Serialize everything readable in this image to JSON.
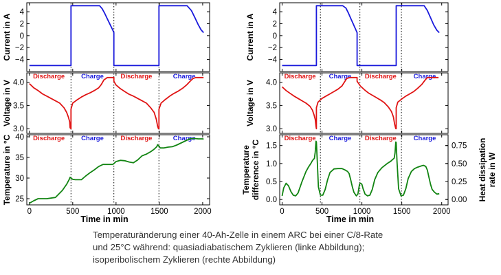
{
  "caption": {
    "line1": "Temperaturänderung einer 40-Ah-Zelle in einem ARC bei einer C/8-Rate",
    "line2": "und 25°C während: quasiadiabatischem Zyklieren (linke Abbildung);",
    "line3": "isoperibolischem Zyklieren (rechte Abbildung)"
  },
  "colors": {
    "current": "#1a1adc",
    "voltage": "#e01414",
    "temperature": "#118411",
    "discharge_label": "#e01414",
    "charge_label": "#1a1adc"
  },
  "phase_labels": {
    "discharge": "Discharge",
    "charge": "Charge"
  },
  "chart_data": [
    {
      "type": "line",
      "panel": "left-top",
      "ylabel": "Current in A",
      "xlabel": "",
      "xlim": [
        -30,
        2080
      ],
      "ylim": [
        -6,
        5.5
      ],
      "yticks": [
        -4,
        -2,
        0,
        2,
        4
      ],
      "xticks": [],
      "phase_boundaries": [
        480,
        975,
        1495
      ],
      "series": [
        {
          "x": [
            0,
            470,
            480,
            480,
            700,
            810,
            840,
            870,
            900,
            930,
            960,
            975,
            975,
            1200,
            1480,
            1495,
            1495,
            1740,
            1820,
            1870,
            1910,
            1950,
            1980,
            2010
          ],
          "y": [
            -5,
            -5,
            -5,
            5,
            5,
            5,
            4.5,
            3.7,
            2.8,
            1.9,
            1.0,
            0.5,
            -5,
            -5,
            -5,
            -5,
            5,
            5,
            5,
            4.2,
            3.0,
            1.8,
            1.0,
            0.5
          ]
        }
      ]
    },
    {
      "type": "line",
      "panel": "left-middle",
      "ylabel": "Voltage in V",
      "xlabel": "",
      "xlim": [
        -30,
        2080
      ],
      "ylim": [
        2.9,
        4.2
      ],
      "yticks": [
        3.0,
        3.5,
        4.0
      ],
      "xticks": [],
      "phase_boundaries": [
        480,
        975,
        1495
      ],
      "phase_label_row": "top",
      "series": [
        {
          "x": [
            0,
            50,
            100,
            150,
            200,
            250,
            300,
            350,
            400,
            430,
            450,
            465,
            470,
            480,
            480,
            500,
            550,
            600,
            650,
            700,
            750,
            800,
            830,
            860,
            900,
            960,
            975,
            975,
            1000,
            1050,
            1100,
            1150,
            1200,
            1250,
            1300,
            1350,
            1400,
            1440,
            1465,
            1480,
            1490,
            1495,
            1495,
            1520,
            1570,
            1620,
            1670,
            1720,
            1770,
            1820,
            1860,
            1890,
            1920,
            1960,
            2010
          ],
          "y": [
            3.97,
            3.88,
            3.82,
            3.75,
            3.7,
            3.65,
            3.6,
            3.55,
            3.45,
            3.35,
            3.25,
            3.15,
            3.02,
            3.0,
            3.42,
            3.55,
            3.62,
            3.68,
            3.73,
            3.77,
            3.82,
            3.88,
            3.95,
            4.05,
            4.1,
            4.1,
            4.1,
            4.02,
            3.94,
            3.86,
            3.8,
            3.74,
            3.7,
            3.65,
            3.6,
            3.55,
            3.45,
            3.35,
            3.2,
            3.05,
            3.0,
            3.0,
            3.42,
            3.55,
            3.63,
            3.7,
            3.76,
            3.81,
            3.87,
            3.95,
            4.03,
            4.08,
            4.1,
            4.1,
            4.1
          ]
        }
      ]
    },
    {
      "type": "line",
      "panel": "left-bottom",
      "ylabel": "Temperature in °C",
      "xlabel": "Time in min",
      "xlim": [
        -30,
        2080
      ],
      "ylim": [
        23.5,
        40.5
      ],
      "yticks": [
        25,
        30,
        35,
        40
      ],
      "xticks": [
        0,
        500,
        1000,
        1500,
        2000
      ],
      "phase_boundaries": [
        480,
        975,
        1495
      ],
      "phase_label_row": "top",
      "series": [
        {
          "x": [
            0,
            50,
            100,
            200,
            300,
            380,
            430,
            460,
            470,
            480,
            500,
            530,
            600,
            650,
            700,
            750,
            800,
            850,
            900,
            960,
            975,
            1000,
            1050,
            1100,
            1150,
            1200,
            1250,
            1300,
            1350,
            1400,
            1440,
            1470,
            1480,
            1490,
            1495,
            1510,
            1550,
            1600,
            1650,
            1700,
            1750,
            1800,
            1850,
            1900,
            1950,
            2000,
            2010
          ],
          "y": [
            23.9,
            24.5,
            25.0,
            25.0,
            25.3,
            27.0,
            28.5,
            29.7,
            30.2,
            30.0,
            29.7,
            29.6,
            29.6,
            30.5,
            31.3,
            32.0,
            32.8,
            33.3,
            33.3,
            33.3,
            33.5,
            34.0,
            34.3,
            34.2,
            33.9,
            33.7,
            34.4,
            35.4,
            35.8,
            36.4,
            37.0,
            37.6,
            38.1,
            37.8,
            37.8,
            37.3,
            37.3,
            37.5,
            37.6,
            38.0,
            38.5,
            39.0,
            39.5,
            39.6,
            39.5,
            39.5,
            39.4
          ]
        }
      ]
    },
    {
      "type": "line",
      "panel": "right-top",
      "ylabel": "Current in A",
      "xlabel": "",
      "xlim": [
        -30,
        2080
      ],
      "ylim": [
        -6,
        5.5
      ],
      "yticks": [
        -4,
        -2,
        0,
        2,
        4
      ],
      "xticks": [],
      "phase_boundaries": [
        480,
        975,
        1495
      ],
      "series": [
        {
          "x": [
            0,
            420,
            430,
            430,
            650,
            760,
            800,
            830,
            860,
            890,
            920,
            940,
            940,
            1200,
            1420,
            1430,
            1430,
            1670,
            1780,
            1820,
            1860,
            1900,
            1940,
            1970
          ],
          "y": [
            -5,
            -5,
            -5,
            5,
            5,
            5,
            4.6,
            3.8,
            2.9,
            2.0,
            1.1,
            0.5,
            -5,
            -5,
            -5,
            -5,
            5,
            5,
            5,
            4.2,
            3.0,
            1.8,
            0.9,
            0.5
          ]
        }
      ]
    },
    {
      "type": "line",
      "panel": "right-middle",
      "ylabel": "Voltage in V",
      "xlabel": "",
      "xlim": [
        -30,
        2080
      ],
      "ylim": [
        2.9,
        4.2
      ],
      "yticks": [
        3.0,
        3.5,
        4.0
      ],
      "xticks": [],
      "phase_boundaries": [
        480,
        975,
        1495
      ],
      "phase_label_row": "top",
      "series": [
        {
          "x": [
            0,
            50,
            100,
            150,
            200,
            250,
            300,
            350,
            380,
            400,
            415,
            425,
            430,
            430,
            450,
            500,
            550,
            600,
            650,
            700,
            750,
            780,
            810,
            850,
            900,
            940,
            940,
            980,
            1030,
            1080,
            1130,
            1180,
            1230,
            1280,
            1330,
            1370,
            1395,
            1410,
            1425,
            1430,
            1430,
            1450,
            1500,
            1550,
            1600,
            1650,
            1700,
            1750,
            1790,
            1820,
            1850,
            1900,
            1960
          ],
          "y": [
            3.9,
            3.82,
            3.76,
            3.7,
            3.65,
            3.6,
            3.55,
            3.48,
            3.4,
            3.3,
            3.2,
            3.05,
            3.0,
            3.45,
            3.57,
            3.65,
            3.7,
            3.75,
            3.8,
            3.85,
            3.92,
            4.0,
            4.08,
            4.1,
            4.1,
            4.1,
            4.02,
            3.92,
            3.84,
            3.77,
            3.72,
            3.67,
            3.62,
            3.56,
            3.47,
            3.37,
            3.25,
            3.1,
            3.0,
            3.0,
            3.45,
            3.57,
            3.64,
            3.7,
            3.75,
            3.8,
            3.87,
            3.95,
            4.04,
            4.1,
            4.1,
            4.1,
            4.1
          ]
        }
      ]
    },
    {
      "type": "line",
      "panel": "right-bottom",
      "ylabel": "Temperature difference in °C",
      "ylabel_right": "Heat dissipation rate in W",
      "xlabel": "Time in min",
      "xlim": [
        -30,
        2080
      ],
      "ylim": [
        -0.15,
        1.8
      ],
      "yticks": [
        0.0,
        0.5,
        1.0,
        1.5
      ],
      "xticks": [
        0,
        500,
        1000,
        1500,
        2000
      ],
      "y2ticks": [
        0.0,
        0.25,
        0.5,
        0.75
      ],
      "phase_boundaries": [
        480,
        975,
        1495
      ],
      "phase_label_row": "top",
      "series": [
        {
          "x": [
            0,
            20,
            50,
            80,
            110,
            140,
            170,
            200,
            250,
            300,
            330,
            360,
            380,
            395,
            405,
            415,
            425,
            430,
            440,
            455,
            480,
            510,
            540,
            570,
            600,
            650,
            700,
            750,
            790,
            820,
            840,
            860,
            880,
            900,
            930,
            950,
            960,
            970,
            980,
            990,
            1000,
            1015,
            1040,
            1070,
            1100,
            1130,
            1160,
            1200,
            1250,
            1300,
            1330,
            1360,
            1380,
            1395,
            1405,
            1415,
            1425,
            1430,
            1440,
            1460,
            1490,
            1520,
            1550,
            1580,
            1620,
            1660,
            1700,
            1740,
            1770,
            1800,
            1820,
            1840,
            1860,
            1880,
            1910,
            1940,
            1970
          ],
          "y": [
            0.1,
            0.32,
            0.45,
            0.38,
            0.22,
            0.12,
            0.1,
            0.18,
            0.5,
            0.78,
            0.9,
            1.0,
            1.08,
            1.12,
            1.14,
            1.32,
            1.62,
            1.6,
            1.1,
            0.35,
            0.12,
            0.12,
            0.28,
            0.55,
            0.75,
            0.85,
            0.86,
            0.86,
            0.82,
            0.78,
            0.72,
            0.55,
            0.35,
            0.2,
            0.1,
            0.15,
            0.3,
            0.42,
            0.45,
            0.44,
            0.42,
            0.3,
            0.15,
            0.1,
            0.12,
            0.28,
            0.55,
            0.75,
            0.88,
            0.97,
            1.02,
            1.06,
            1.1,
            1.13,
            1.15,
            1.3,
            1.6,
            1.58,
            1.05,
            0.3,
            0.1,
            0.12,
            0.3,
            0.58,
            0.78,
            0.86,
            0.9,
            0.93,
            0.95,
            0.92,
            0.82,
            0.62,
            0.42,
            0.28,
            0.2,
            0.15,
            0.16
          ]
        }
      ]
    }
  ]
}
